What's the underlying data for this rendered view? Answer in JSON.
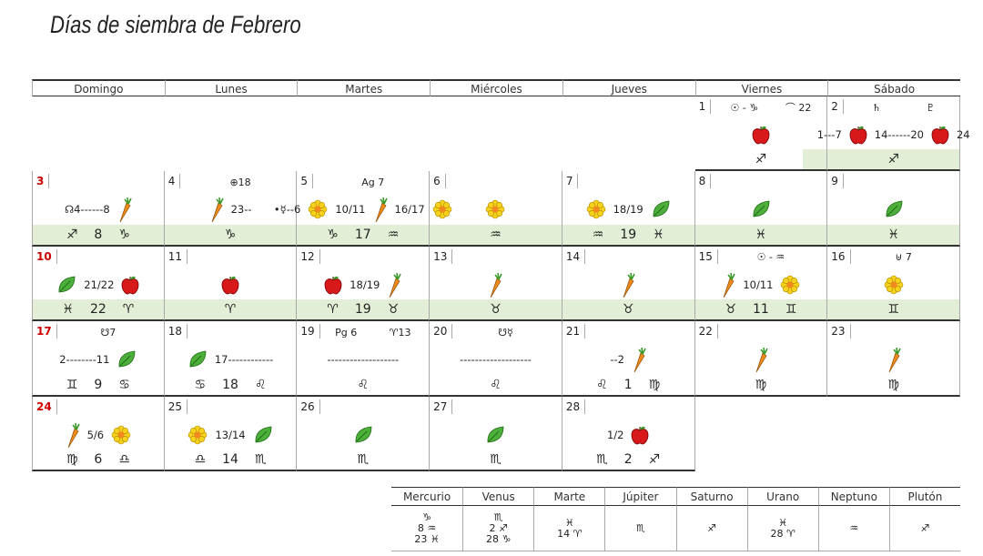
{
  "title": "Días de siembra de Febrero",
  "weekdays": [
    "Domingo",
    "Lunes",
    "Martes",
    "Miércoles",
    "Jueves",
    "Viernes",
    "Sábado"
  ],
  "days": [
    {
      "day": 1,
      "top": [
        "☉ - ♑",
        "⌒ 22"
      ],
      "mid": [],
      "bottom": [
        "♐"
      ]
    },
    {
      "day": 2,
      "top": [
        "♄",
        "♇"
      ],
      "mid": [
        "1---7",
        "14------20",
        "24"
      ],
      "bottom": [
        "♐"
      ]
    },
    {
      "day": 3,
      "top": [],
      "mid": [
        "☊4------8"
      ],
      "bottom": [
        "♐",
        "8",
        "♑"
      ]
    },
    {
      "day": 4,
      "top": [
        "⊕18"
      ],
      "mid": [
        "23--"
      ],
      "bottom": [
        "♑"
      ]
    },
    {
      "day": 5,
      "top": [
        "Ag 7"
      ],
      "mid": [
        "•☿--6",
        "10/11",
        "16/17"
      ],
      "bottom": [
        "♑",
        "17",
        "♒"
      ]
    },
    {
      "day": 6,
      "top": [],
      "mid": [],
      "bottom": [
        "♒"
      ]
    },
    {
      "day": 7,
      "top": [],
      "mid": [
        "18/19"
      ],
      "bottom": [
        "♒",
        "19",
        "♓"
      ]
    },
    {
      "day": 8,
      "top": [],
      "mid": [],
      "bottom": [
        "♓"
      ]
    },
    {
      "day": 9,
      "top": [],
      "mid": [],
      "bottom": [
        "♓"
      ]
    },
    {
      "day": 10,
      "top": [],
      "mid": [
        "21/22"
      ],
      "bottom": [
        "♓",
        "22",
        "♈"
      ]
    },
    {
      "day": 11,
      "top": [],
      "mid": [],
      "bottom": [
        "♈"
      ]
    },
    {
      "day": 12,
      "top": [],
      "mid": [
        "18/19"
      ],
      "bottom": [
        "♈",
        "19",
        "♉"
      ]
    },
    {
      "day": 13,
      "top": [],
      "mid": [],
      "bottom": [
        "♉"
      ]
    },
    {
      "day": 14,
      "top": [],
      "mid": [],
      "bottom": [
        "♉"
      ]
    },
    {
      "day": 15,
      "top": [
        "☉ - ♒"
      ],
      "mid": [
        "10/11"
      ],
      "bottom": [
        "♉",
        "11",
        "♊"
      ]
    },
    {
      "day": 16,
      "top": [
        "⊎ 7"
      ],
      "mid": [],
      "bottom": [
        "♊"
      ]
    },
    {
      "day": 17,
      "top": [
        "☋7"
      ],
      "mid": [
        "2--------11"
      ],
      "bottom": [
        "♊",
        "9",
        "♋"
      ]
    },
    {
      "day": 18,
      "top": [],
      "mid": [
        "17------------"
      ],
      "bottom": [
        "♋",
        "18",
        "♌"
      ]
    },
    {
      "day": 19,
      "top": [
        "Pg 6",
        "♈13"
      ],
      "mid": [
        "-------------------"
      ],
      "bottom": [
        "♌"
      ]
    },
    {
      "day": 20,
      "top": [
        "☋☿"
      ],
      "mid": [
        "-------------------"
      ],
      "bottom": [
        "♌"
      ]
    },
    {
      "day": 21,
      "top": [],
      "mid": [
        "--2"
      ],
      "bottom": [
        "♌",
        "1",
        "♍"
      ]
    },
    {
      "day": 22,
      "top": [],
      "mid": [],
      "bottom": [
        "♍"
      ]
    },
    {
      "day": 23,
      "top": [],
      "mid": [],
      "bottom": [
        "♍"
      ]
    },
    {
      "day": 24,
      "top": [],
      "mid": [
        "5/6"
      ],
      "bottom": [
        "♍",
        "6",
        "♎"
      ]
    },
    {
      "day": 25,
      "top": [],
      "mid": [
        "13/14"
      ],
      "bottom": [
        "♎",
        "14",
        "♏"
      ]
    },
    {
      "day": 26,
      "top": [],
      "mid": [],
      "bottom": [
        "♏"
      ]
    },
    {
      "day": 27,
      "top": [],
      "mid": [],
      "bottom": [
        "♏"
      ]
    },
    {
      "day": 28,
      "top": [],
      "mid": [
        "1/2"
      ],
      "bottom": [
        "♏",
        "2",
        "♐"
      ]
    }
  ],
  "planets": {
    "headers": [
      "Mercurio",
      "Venus",
      "Marte",
      "Júpiter",
      "Saturno",
      "Urano",
      "Neptuno",
      "Plutón"
    ],
    "positions": [
      [
        "♑",
        "8 ♒",
        "23 ♓"
      ],
      [
        "♏",
        "2 ♐",
        "28 ♑"
      ],
      [
        "♓",
        "14 ♈"
      ],
      [
        "♏"
      ],
      [
        "♐"
      ],
      [
        "♓",
        "28 ♈"
      ],
      [
        "♒"
      ],
      [
        "♐"
      ]
    ]
  }
}
